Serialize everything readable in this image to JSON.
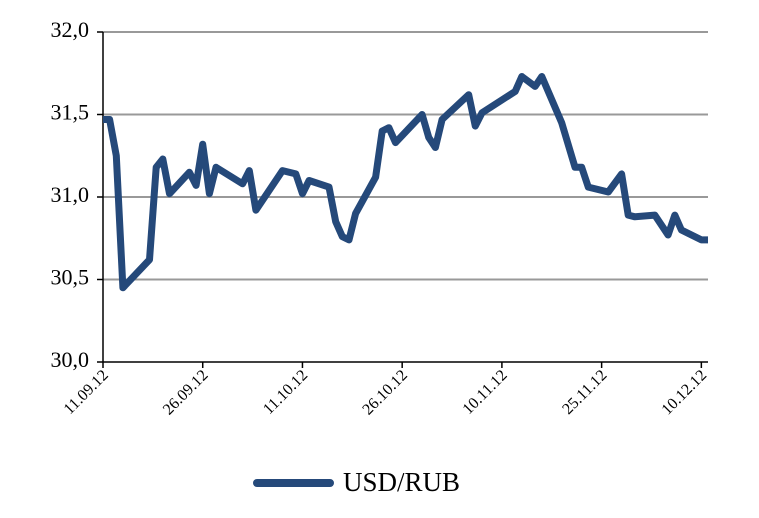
{
  "chart_data": {
    "type": "line",
    "x": [
      "2012-09-11",
      "2012-09-12",
      "2012-09-13",
      "2012-09-14",
      "2012-09-18",
      "2012-09-19",
      "2012-09-20",
      "2012-09-21",
      "2012-09-24",
      "2012-09-25",
      "2012-09-26",
      "2012-09-27",
      "2012-09-28",
      "2012-10-02",
      "2012-10-03",
      "2012-10-04",
      "2012-10-08",
      "2012-10-10",
      "2012-10-11",
      "2012-10-12",
      "2012-10-15",
      "2012-10-16",
      "2012-10-17",
      "2012-10-18",
      "2012-10-19",
      "2012-10-22",
      "2012-10-23",
      "2012-10-24",
      "2012-10-25",
      "2012-10-29",
      "2012-10-30",
      "2012-10-31",
      "2012-11-01",
      "2012-11-05",
      "2012-11-06",
      "2012-11-07",
      "2012-11-12",
      "2012-11-13",
      "2012-11-15",
      "2012-11-16",
      "2012-11-19",
      "2012-11-21",
      "2012-11-22",
      "2012-11-23",
      "2012-11-26",
      "2012-11-28",
      "2012-11-29",
      "2012-11-30",
      "2012-12-03",
      "2012-12-05",
      "2012-12-06",
      "2012-12-07",
      "2012-12-10",
      "2012-12-11"
    ],
    "series": [
      {
        "name": "USD/RUB",
        "color": "#25497a",
        "values": [
          31.47,
          31.47,
          31.25,
          30.45,
          30.62,
          31.18,
          31.23,
          31.02,
          31.15,
          31.07,
          31.32,
          31.02,
          31.18,
          31.08,
          31.16,
          30.92,
          31.16,
          31.14,
          31.02,
          31.1,
          31.06,
          30.85,
          30.76,
          30.74,
          30.9,
          31.12,
          31.4,
          31.42,
          31.33,
          31.5,
          31.36,
          31.3,
          31.47,
          31.62,
          31.43,
          31.51,
          31.64,
          31.73,
          31.67,
          31.73,
          31.45,
          31.18,
          31.18,
          31.06,
          31.03,
          31.14,
          30.89,
          30.88,
          30.89,
          30.77,
          30.89,
          30.8,
          30.74,
          30.74
        ]
      }
    ],
    "xlim": [
      "2012-09-11",
      "2012-12-11"
    ],
    "xticks": [
      {
        "value": "2012-09-11",
        "label": "11.09.12"
      },
      {
        "value": "2012-09-26",
        "label": "26.09.12"
      },
      {
        "value": "2012-10-11",
        "label": "11.10.12"
      },
      {
        "value": "2012-10-26",
        "label": "26.10.12"
      },
      {
        "value": "2012-11-10",
        "label": "10.11.12"
      },
      {
        "value": "2012-11-25",
        "label": "25.11.12"
      },
      {
        "value": "2012-12-10",
        "label": "10.12.12"
      }
    ],
    "ylim": [
      30,
      32
    ],
    "yticks": [
      {
        "value": 30,
        "label": "30,0"
      },
      {
        "value": 30.5,
        "label": "30,5"
      },
      {
        "value": 31,
        "label": "31,0"
      },
      {
        "value": 31.5,
        "label": "31,5"
      },
      {
        "value": 32,
        "label": "32,0"
      }
    ],
    "grid": true,
    "legend": "bottom"
  }
}
